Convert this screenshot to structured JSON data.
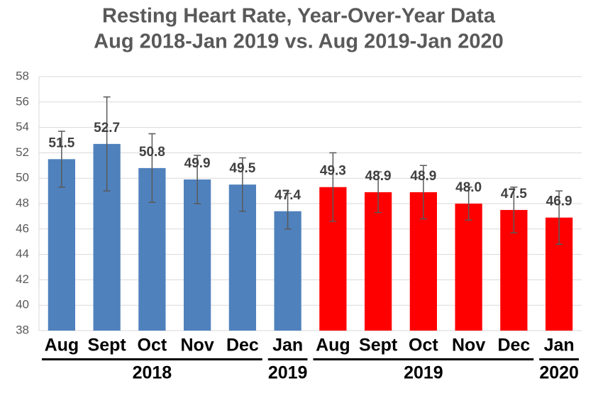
{
  "chart_data": {
    "type": "bar",
    "title": [
      "Resting Heart Rate, Year-Over-Year Data",
      "Aug 2018-Jan 2019 vs. Aug 2019-Jan 2020"
    ],
    "categories": [
      "Aug",
      "Sept",
      "Oct",
      "Nov",
      "Dec",
      "Jan",
      "Aug",
      "Sept",
      "Oct",
      "Nov",
      "Dec",
      "Jan"
    ],
    "values": [
      51.5,
      52.7,
      50.8,
      49.9,
      49.5,
      47.4,
      49.3,
      48.9,
      48.9,
      48.0,
      47.5,
      46.9
    ],
    "value_labels": [
      "51.5",
      "52.7",
      "50.8",
      "49.9",
      "49.5",
      "47.4",
      "49.3",
      "48.9",
      "48.9",
      "48.0",
      "47.5",
      "46.9"
    ],
    "errors": [
      2.2,
      3.7,
      2.7,
      1.9,
      2.1,
      1.4,
      2.7,
      1.6,
      2.1,
      1.3,
      1.8,
      2.1
    ],
    "colors": [
      "#4f81bd",
      "#4f81bd",
      "#4f81bd",
      "#4f81bd",
      "#4f81bd",
      "#4f81bd",
      "#ff0000",
      "#ff0000",
      "#ff0000",
      "#ff0000",
      "#ff0000",
      "#ff0000"
    ],
    "groups": [
      {
        "label": "2018",
        "count": 5
      },
      {
        "label": "2019",
        "count": 1
      },
      {
        "label": "2019",
        "count": 5
      },
      {
        "label": "2020",
        "count": 1
      }
    ],
    "ylim": [
      38,
      58
    ],
    "yticks": [
      38,
      40,
      42,
      44,
      46,
      48,
      50,
      52,
      54,
      56,
      58
    ],
    "grid": true
  }
}
